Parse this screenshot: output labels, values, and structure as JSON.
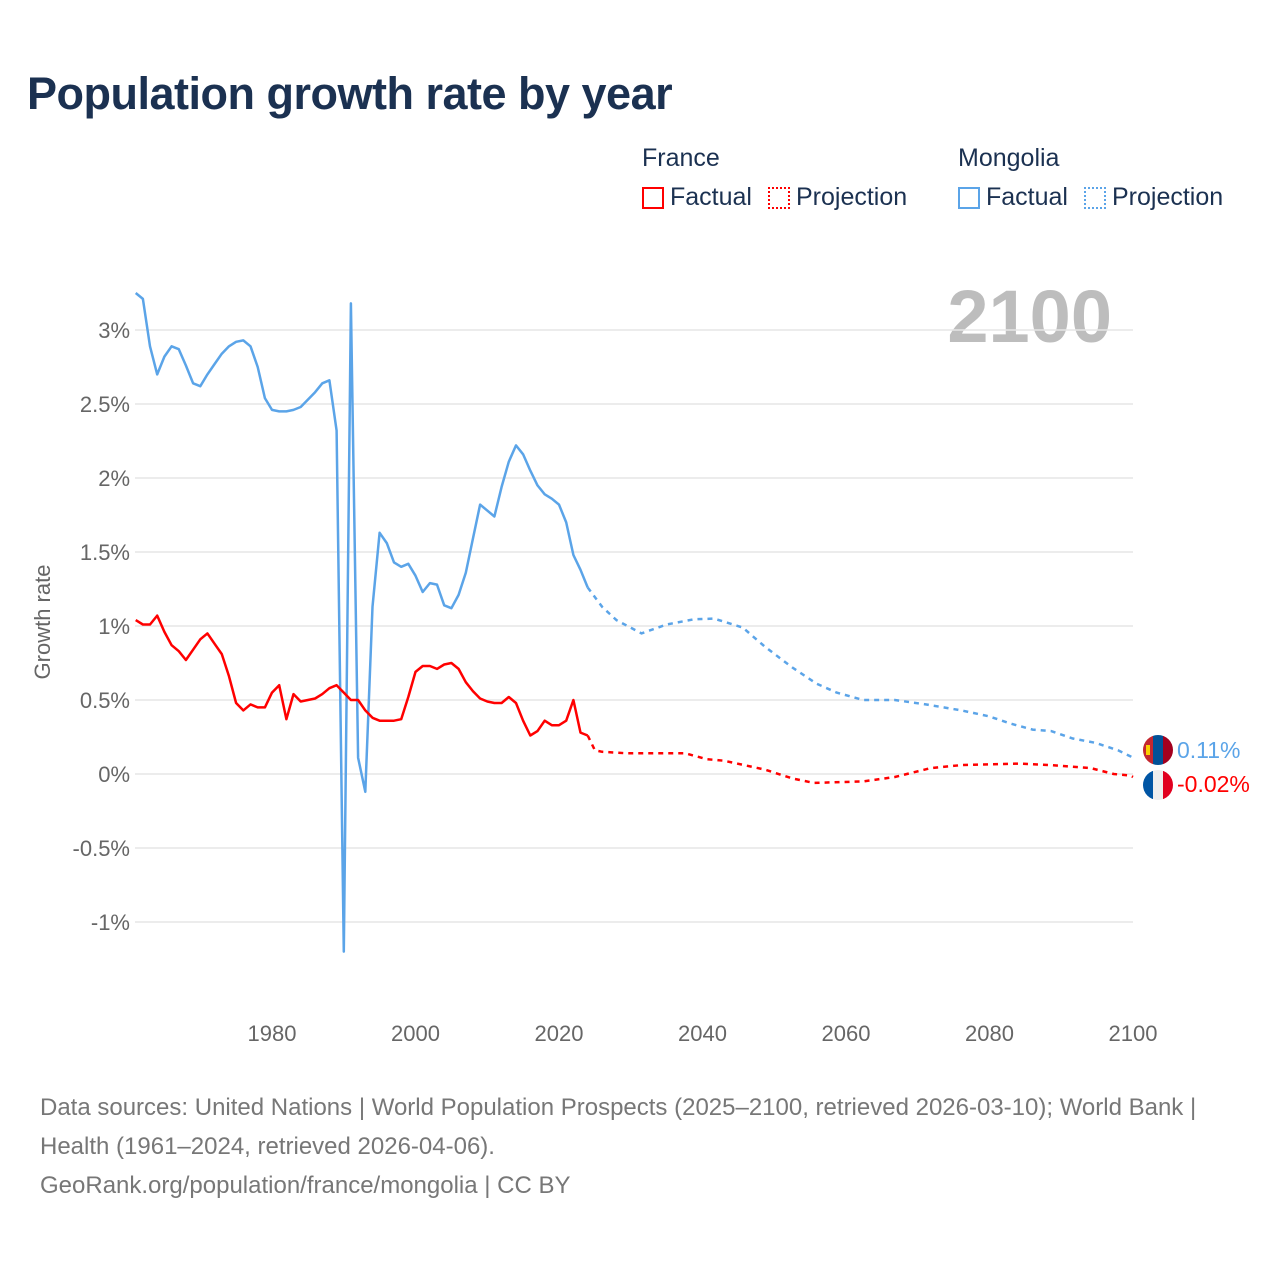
{
  "title": "Population growth rate by year",
  "legend": {
    "groups": [
      {
        "name": "France",
        "color": "#ff0000",
        "factual": "Factual",
        "projection": "Projection"
      },
      {
        "name": "Mongolia",
        "color": "#5ba4e8",
        "factual": "Factual",
        "projection": "Projection"
      }
    ]
  },
  "year_display": "2100",
  "footer": {
    "sources": "Data sources: United Nations | World Population Prospects (2025–2100, retrieved 2026-03-10); World Bank | Health (1961–2024, retrieved 2026-04-06).",
    "credit": "GeoRank.org/population/france/mongolia | CC BY"
  },
  "chart_data": {
    "type": "line",
    "title": "Population growth rate by year",
    "xlabel": "",
    "ylabel": "Growth rate",
    "xlim": [
      1961,
      2100
    ],
    "ylim": [
      -1.35,
      3.3
    ],
    "y_ticks": [
      3,
      2.5,
      2,
      1.5,
      1,
      0.5,
      0,
      -0.5,
      -1
    ],
    "y_tick_labels": [
      "3%",
      "2.5%",
      "2%",
      "1.5%",
      "1%",
      "0.5%",
      "0%",
      "-0.5%",
      "-1%"
    ],
    "x_ticks": [
      1980,
      2000,
      2020,
      2040,
      2060,
      2080,
      2100
    ],
    "x_tick_labels": [
      "1980",
      "2000",
      "2020",
      "2040",
      "2060",
      "2080",
      "2100"
    ],
    "grid": true,
    "legend_position": "top-right",
    "series": [
      {
        "name": "Mongolia",
        "color": "#5ba4e8",
        "end_label": "0.11%",
        "factual": [
          [
            1961,
            3.25
          ],
          [
            1962,
            3.21
          ],
          [
            1963,
            2.89
          ],
          [
            1964,
            2.7
          ],
          [
            1965,
            2.82
          ],
          [
            1966,
            2.89
          ],
          [
            1967,
            2.87
          ],
          [
            1968,
            2.76
          ],
          [
            1969,
            2.64
          ],
          [
            1970,
            2.62
          ],
          [
            1971,
            2.7
          ],
          [
            1972,
            2.77
          ],
          [
            1973,
            2.84
          ],
          [
            1974,
            2.89
          ],
          [
            1975,
            2.92
          ],
          [
            1976,
            2.93
          ],
          [
            1977,
            2.89
          ],
          [
            1978,
            2.75
          ],
          [
            1979,
            2.54
          ],
          [
            1980,
            2.46
          ],
          [
            1981,
            2.45
          ],
          [
            1982,
            2.45
          ],
          [
            1983,
            2.46
          ],
          [
            1984,
            2.48
          ],
          [
            1985,
            2.53
          ],
          [
            1986,
            2.58
          ],
          [
            1987,
            2.64
          ],
          [
            1988,
            2.66
          ],
          [
            1989,
            2.32
          ],
          [
            1990,
            -1.2
          ],
          [
            1991,
            3.18
          ],
          [
            1992,
            0.11
          ],
          [
            1993,
            -0.12
          ],
          [
            1994,
            1.13
          ],
          [
            1995,
            1.63
          ],
          [
            1996,
            1.56
          ],
          [
            1997,
            1.43
          ],
          [
            1998,
            1.4
          ],
          [
            1999,
            1.42
          ],
          [
            2000,
            1.34
          ],
          [
            2001,
            1.23
          ],
          [
            2002,
            1.29
          ],
          [
            2003,
            1.28
          ],
          [
            2004,
            1.14
          ],
          [
            2005,
            1.12
          ],
          [
            2006,
            1.21
          ],
          [
            2007,
            1.36
          ],
          [
            2008,
            1.59
          ],
          [
            2009,
            1.82
          ],
          [
            2010,
            1.78
          ],
          [
            2011,
            1.74
          ],
          [
            2012,
            1.94
          ],
          [
            2013,
            2.11
          ],
          [
            2014,
            2.22
          ],
          [
            2015,
            2.16
          ],
          [
            2016,
            2.05
          ],
          [
            2017,
            1.95
          ],
          [
            2018,
            1.89
          ],
          [
            2019,
            1.86
          ],
          [
            2020,
            1.82
          ],
          [
            2021,
            1.7
          ],
          [
            2022,
            1.48
          ],
          [
            2023,
            1.38
          ],
          [
            2024,
            1.26
          ]
        ],
        "projection": [
          [
            2024,
            1.26
          ],
          [
            2026,
            1.13
          ],
          [
            2028,
            1.04
          ],
          [
            2031.5,
            0.95
          ],
          [
            2035,
            1.01
          ],
          [
            2038.8,
            1.045
          ],
          [
            2041.6,
            1.05
          ],
          [
            2045.6,
            0.99
          ],
          [
            2048.7,
            0.86
          ],
          [
            2052.5,
            0.72
          ],
          [
            2055.9,
            0.61
          ],
          [
            2058.7,
            0.55
          ],
          [
            2062.4,
            0.5
          ],
          [
            2066.8,
            0.5
          ],
          [
            2071.1,
            0.47
          ],
          [
            2076.1,
            0.43
          ],
          [
            2079.9,
            0.39
          ],
          [
            2083,
            0.34
          ],
          [
            2086,
            0.3
          ],
          [
            2088.6,
            0.29
          ],
          [
            2091.6,
            0.24
          ],
          [
            2094.8,
            0.21
          ],
          [
            2097.9,
            0.16
          ],
          [
            2099.6,
            0.12
          ],
          [
            2100,
            0.11
          ]
        ]
      },
      {
        "name": "France",
        "color": "#ff0000",
        "end_label": "-0.02%",
        "factual": [
          [
            1961,
            1.04
          ],
          [
            1962,
            1.01
          ],
          [
            1963,
            1.01
          ],
          [
            1964,
            1.07
          ],
          [
            1965,
            0.96
          ],
          [
            1966,
            0.87
          ],
          [
            1967,
            0.83
          ],
          [
            1968,
            0.77
          ],
          [
            1969,
            0.84
          ],
          [
            1970,
            0.91
          ],
          [
            1971,
            0.95
          ],
          [
            1972,
            0.88
          ],
          [
            1973,
            0.81
          ],
          [
            1974,
            0.66
          ],
          [
            1975,
            0.48
          ],
          [
            1976,
            0.43
          ],
          [
            1977,
            0.47
          ],
          [
            1978,
            0.45
          ],
          [
            1979,
            0.45
          ],
          [
            1980,
            0.55
          ],
          [
            1981,
            0.6
          ],
          [
            1982,
            0.37
          ],
          [
            1983,
            0.54
          ],
          [
            1984,
            0.49
          ],
          [
            1985,
            0.5
          ],
          [
            1986,
            0.51
          ],
          [
            1987,
            0.54
          ],
          [
            1988,
            0.58
          ],
          [
            1989,
            0.6
          ],
          [
            1990,
            0.55
          ],
          [
            1991,
            0.5
          ],
          [
            1992,
            0.5
          ],
          [
            1993,
            0.43
          ],
          [
            1994,
            0.38
          ],
          [
            1995,
            0.36
          ],
          [
            1996,
            0.36
          ],
          [
            1997,
            0.36
          ],
          [
            1998,
            0.37
          ],
          [
            1999,
            0.52
          ],
          [
            2000,
            0.69
          ],
          [
            2001,
            0.73
          ],
          [
            2002,
            0.73
          ],
          [
            2003,
            0.71
          ],
          [
            2004,
            0.74
          ],
          [
            2005,
            0.75
          ],
          [
            2006,
            0.71
          ],
          [
            2007,
            0.62
          ],
          [
            2008,
            0.56
          ],
          [
            2009,
            0.51
          ],
          [
            2010,
            0.49
          ],
          [
            2011,
            0.48
          ],
          [
            2012,
            0.48
          ],
          [
            2013,
            0.52
          ],
          [
            2014,
            0.48
          ],
          [
            2015,
            0.36
          ],
          [
            2016,
            0.26
          ],
          [
            2017,
            0.29
          ],
          [
            2018,
            0.36
          ],
          [
            2019,
            0.33
          ],
          [
            2020,
            0.33
          ],
          [
            2021,
            0.36
          ],
          [
            2022,
            0.5
          ],
          [
            2023,
            0.28
          ],
          [
            2024,
            0.26
          ]
        ],
        "projection": [
          [
            2024,
            0.26
          ],
          [
            2025,
            0.16
          ],
          [
            2026,
            0.15
          ],
          [
            2029.5,
            0.14
          ],
          [
            2037.6,
            0.14
          ],
          [
            2040.6,
            0.1
          ],
          [
            2043,
            0.09
          ],
          [
            2048.7,
            0.03
          ],
          [
            2052.5,
            -0.03
          ],
          [
            2055.5,
            -0.06
          ],
          [
            2062.4,
            -0.05
          ],
          [
            2066.8,
            -0.02
          ],
          [
            2071.8,
            0.04
          ],
          [
            2076.1,
            0.06
          ],
          [
            2084.2,
            0.07
          ],
          [
            2088.6,
            0.06
          ],
          [
            2094.1,
            0.04
          ],
          [
            2097.3,
            0.0
          ],
          [
            2099.6,
            -0.01
          ],
          [
            2100,
            -0.02
          ]
        ]
      }
    ]
  }
}
